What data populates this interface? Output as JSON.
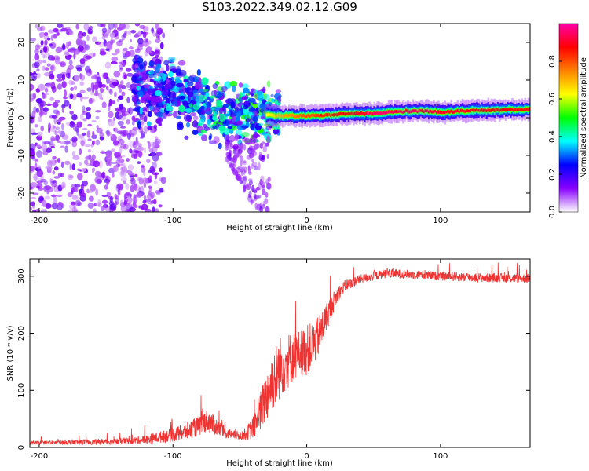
{
  "title": "S103.2022.349.02.12.G09",
  "chart_data": [
    {
      "type": "heatmap",
      "xlabel": "Height of straight line (km)",
      "ylabel": "Frequency (Hz)",
      "xlim": [
        -207,
        167
      ],
      "ylim": [
        -25,
        25
      ],
      "xticks": [
        -200,
        -100,
        0,
        100
      ],
      "yticks": [
        -20,
        -10,
        0,
        10,
        20
      ],
      "colorbar": {
        "label": "Normalized spectral amplitude",
        "range": [
          0,
          1
        ],
        "ticks": [
          0.0,
          0.2,
          0.4,
          0.6,
          0.8
        ],
        "colormap": [
          "#ffffff",
          "#8800ff",
          "#0000ff",
          "#00ffff",
          "#00ff00",
          "#ffff00",
          "#ff8000",
          "#ff0000",
          "#ff00aa"
        ]
      },
      "ridge": {
        "x": [
          -207,
          -150,
          -120,
          -100,
          -80,
          -60,
          -40,
          -20,
          0,
          20,
          50,
          80,
          100,
          130,
          167
        ],
        "frequency": [
          0,
          3,
          8,
          6,
          3,
          2,
          1,
          0.5,
          0.5,
          0.8,
          1.2,
          1.8,
          1.5,
          2.0,
          2.2
        ],
        "peak_amplitude": [
          0.05,
          0.1,
          0.2,
          0.3,
          0.45,
          0.5,
          0.55,
          0.7,
          0.8,
          0.85,
          0.95,
          0.95,
          0.9,
          0.9,
          0.85
        ]
      }
    },
    {
      "type": "line",
      "xlabel": "Height of straight line (km)",
      "ylabel": "SNR (10 * v/v)",
      "xlim": [
        -207,
        167
      ],
      "ylim": [
        0,
        330
      ],
      "xticks": [
        -200,
        -100,
        0,
        100
      ],
      "yticks": [
        0,
        100,
        200,
        300
      ],
      "color": "#ee3333",
      "series": [
        {
          "x": [
            -207,
            -180,
            -150,
            -130,
            -120,
            -110,
            -100,
            -90,
            -80,
            -75,
            -70,
            -65,
            -60,
            -55,
            -50,
            -45,
            -40,
            -35,
            -30,
            -25,
            -20,
            -15,
            -10,
            -5,
            0,
            5,
            10,
            15,
            20,
            25,
            30,
            40,
            50,
            60,
            80,
            100,
            120,
            140,
            167
          ],
          "values": [
            8,
            9,
            10,
            12,
            14,
            18,
            22,
            28,
            38,
            48,
            40,
            32,
            25,
            22,
            20,
            25,
            35,
            60,
            90,
            120,
            140,
            150,
            160,
            165,
            170,
            180,
            200,
            230,
            255,
            275,
            285,
            295,
            300,
            305,
            303,
            300,
            298,
            297,
            296
          ],
          "spread": [
            3,
            4,
            5,
            6,
            8,
            10,
            12,
            15,
            18,
            20,
            18,
            14,
            10,
            8,
            8,
            12,
            20,
            35,
            45,
            55,
            55,
            50,
            45,
            40,
            45,
            40,
            35,
            25,
            18,
            12,
            10,
            8,
            8,
            8,
            8,
            8,
            8,
            8,
            8
          ]
        }
      ]
    }
  ]
}
